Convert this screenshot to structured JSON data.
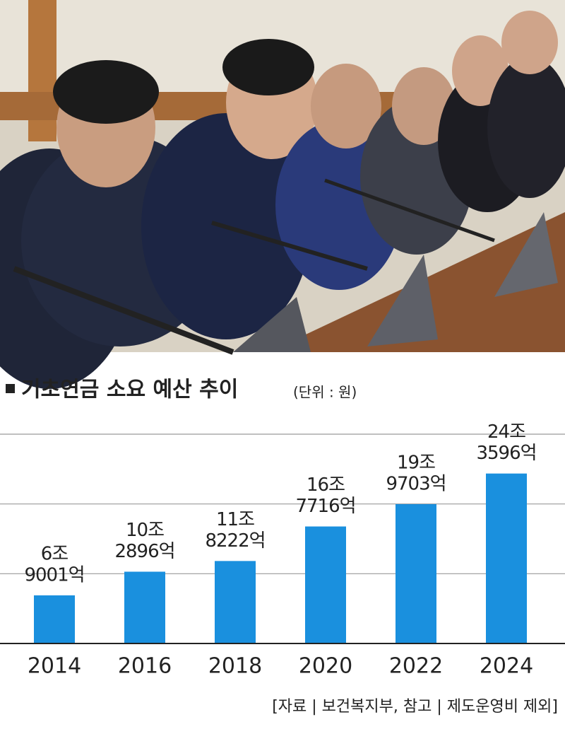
{
  "chart_data": {
    "type": "bar",
    "title": "기초연금 소요 예산 추이",
    "subtitle": "(단위 : 원)",
    "source": "[자료 | 보건복지부, 참고 | 제도운영비 제외]",
    "categories": [
      "2014",
      "2016",
      "2018",
      "2020",
      "2022",
      "2024"
    ],
    "values": [
      6900100000000,
      10289600000000,
      11822200000000,
      16771600000000,
      19970300000000,
      24359600000000
    ],
    "value_labels": [
      [
        "6조",
        "9001억"
      ],
      [
        "10조",
        "2896억"
      ],
      [
        "11조",
        "8222억"
      ],
      [
        "16조",
        "7716억"
      ],
      [
        "19조",
        "9703억"
      ],
      [
        "24조",
        "3596억"
      ]
    ],
    "color": "#1a90de",
    "ylim": [
      0,
      30000000000000
    ],
    "yticks": [
      0,
      10000000000000,
      20000000000000,
      30000000000000
    ],
    "grid": true
  }
}
